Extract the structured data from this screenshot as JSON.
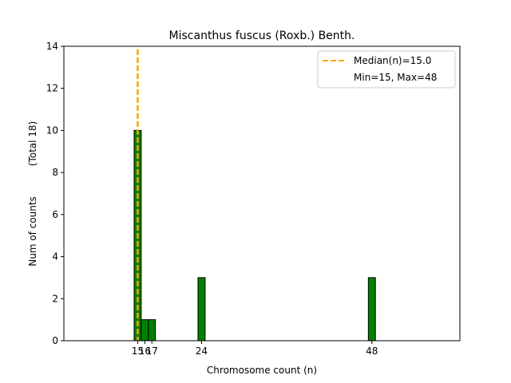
{
  "chart_data": {
    "type": "bar",
    "title": "Miscanthus fuscus (Roxb.) Benth.",
    "xlabel": "Chromosome count (n)",
    "ylabel": "Num of counts",
    "ylabel_total": "(Total 18)",
    "xlim": [
      4.6,
      60.4
    ],
    "ylim": [
      0,
      14
    ],
    "y_ticks": [
      0,
      2,
      4,
      6,
      8,
      10,
      12,
      14
    ],
    "x_ticks": [
      15,
      16,
      17,
      24,
      48
    ],
    "bar_width": 1,
    "bars": [
      {
        "x": 15,
        "value": 10
      },
      {
        "x": 16,
        "value": 1
      },
      {
        "x": 17,
        "value": 1
      },
      {
        "x": 24,
        "value": 3
      },
      {
        "x": 48,
        "value": 3
      }
    ],
    "bar_color": "#008000",
    "bar_edge_color": "#000000",
    "median_line": {
      "x": 15.0,
      "color": "#FFA500",
      "label": "Median(n)=15.0"
    },
    "legend": {
      "position": "top-right",
      "entries": [
        "Median(n)=15.0",
        "Min=15, Max=48"
      ]
    }
  }
}
